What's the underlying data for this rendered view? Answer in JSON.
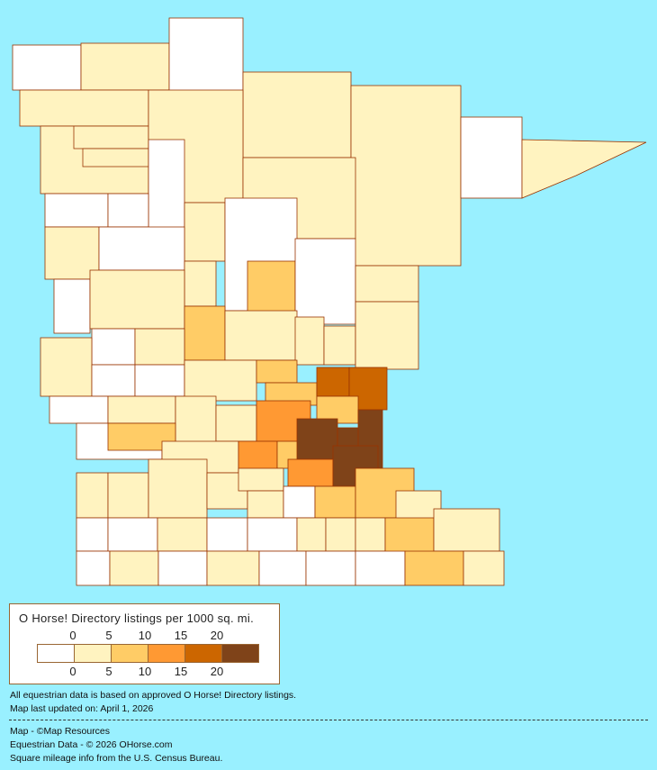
{
  "legend": {
    "title": "O Horse! Directory listings per 1000 sq. mi.",
    "top_ticks": [
      "0",
      "5",
      "10",
      "15",
      "20"
    ],
    "bottom_ticks": [
      "0",
      "5",
      "10",
      "15",
      "20"
    ],
    "bins": [
      {
        "range": "0",
        "color": "#FFFFFF"
      },
      {
        "range": "0-5",
        "color": "#FFF3C0"
      },
      {
        "range": "5-10",
        "color": "#FFCC66"
      },
      {
        "range": "10-15",
        "color": "#FF9933"
      },
      {
        "range": "15-20",
        "color": "#CC6600"
      },
      {
        "range": "20+",
        "color": "#7F4319"
      }
    ]
  },
  "notes": {
    "basis": "All equestrian data is based on approved O Horse! Directory listings.",
    "updated": "Map last updated on: April 1, 2026",
    "map_credit": "Map - ©Map Resources",
    "data_credit": "Equestrian Data - © 2026 OHorse.com",
    "census_credit": "Square mileage info from the U.S. Census Bureau."
  },
  "colors": {
    "background": "#99F0FF",
    "border": "#993300"
  }
}
